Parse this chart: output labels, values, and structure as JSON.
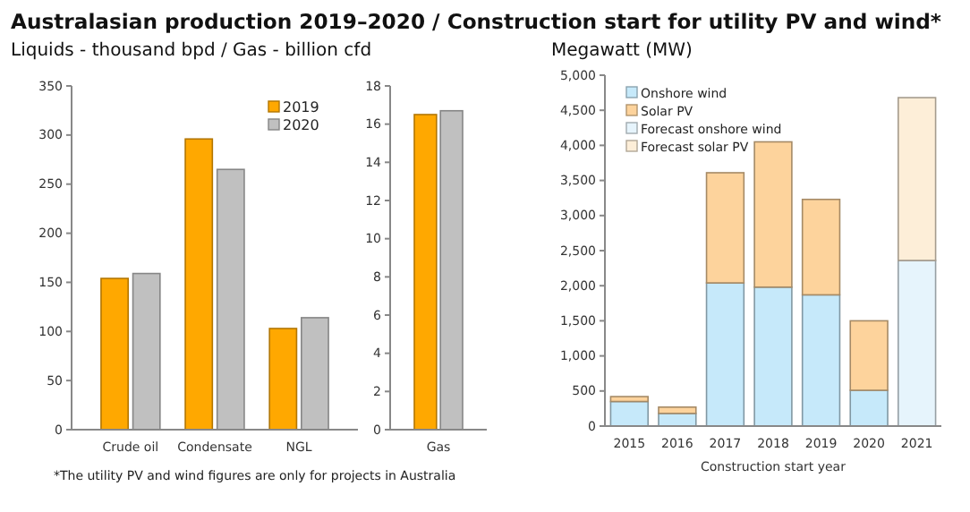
{
  "chart_data": [
    {
      "type": "bar",
      "title": "Australasian production 2019–2020 / Construction start for utility PV and wind*",
      "subtitle": "Liquids - thousand bpd / Gas - billion cfd",
      "categories": [
        "Crude oil",
        "Condensate",
        "NGL"
      ],
      "series": [
        {
          "name": "2019",
          "color": "#ffa800",
          "values": [
            154,
            296,
            103
          ]
        },
        {
          "name": "2020",
          "color": "#c0c0c0",
          "values": [
            159,
            265,
            114
          ]
        }
      ],
      "ylim": [
        0,
        350
      ],
      "yticks": [
        0,
        50,
        100,
        150,
        200,
        250,
        300,
        350
      ],
      "legend": "top right",
      "annotations": [
        "*The utility PV and wind figures are only for projects in Australia"
      ]
    },
    {
      "type": "bar",
      "categories": [
        "Gas"
      ],
      "series": [
        {
          "color": "#ffa800",
          "values": [
            16.5
          ]
        },
        {
          "color": "#c0c0c0",
          "values": [
            16.7
          ]
        }
      ],
      "ylim": [
        0,
        18
      ],
      "yticks": [
        0,
        2,
        4,
        6,
        8,
        10,
        12,
        14,
        16,
        18
      ]
    },
    {
      "type": "bar",
      "subtitle": "Megawatt (MW)",
      "xlabel": "Construction start year",
      "stacked": true,
      "categories": [
        "2015",
        "2016",
        "2017",
        "2018",
        "2019",
        "2020",
        "2021"
      ],
      "series": [
        {
          "name": "Onshore wind",
          "color": "#c6e9fa",
          "values": [
            350,
            180,
            2040,
            1980,
            1870,
            510,
            null
          ]
        },
        {
          "name": "Solar PV",
          "color": "#fdd39c",
          "values": [
            70,
            90,
            1570,
            2070,
            1360,
            990,
            null
          ]
        },
        {
          "name": "Forecast onshore wind",
          "color": "#e6f4fc",
          "values": [
            null,
            null,
            null,
            null,
            null,
            null,
            2360
          ]
        },
        {
          "name": "Forecast solar PV",
          "color": "#fdeed8",
          "values": [
            null,
            null,
            null,
            null,
            null,
            null,
            2320
          ]
        }
      ],
      "ylim": [
        0,
        5000
      ],
      "yticks": [
        0,
        {
          "value": 500,
          "label": "500"
        },
        {
          "value": 1000,
          "label": "1,000"
        },
        {
          "value": 1500,
          "label": "1,500"
        },
        {
          "value": 2000,
          "label": "2,000"
        },
        {
          "value": 2500,
          "label": "2,500"
        },
        {
          "value": 3000,
          "label": "3,000"
        },
        {
          "value": 3500,
          "label": "3,500"
        },
        {
          "value": 4000,
          "label": "4,000"
        },
        {
          "value": 4500,
          "label": "4,500"
        },
        {
          "value": 5000,
          "label": "5,000"
        }
      ],
      "legend": "top left"
    }
  ]
}
